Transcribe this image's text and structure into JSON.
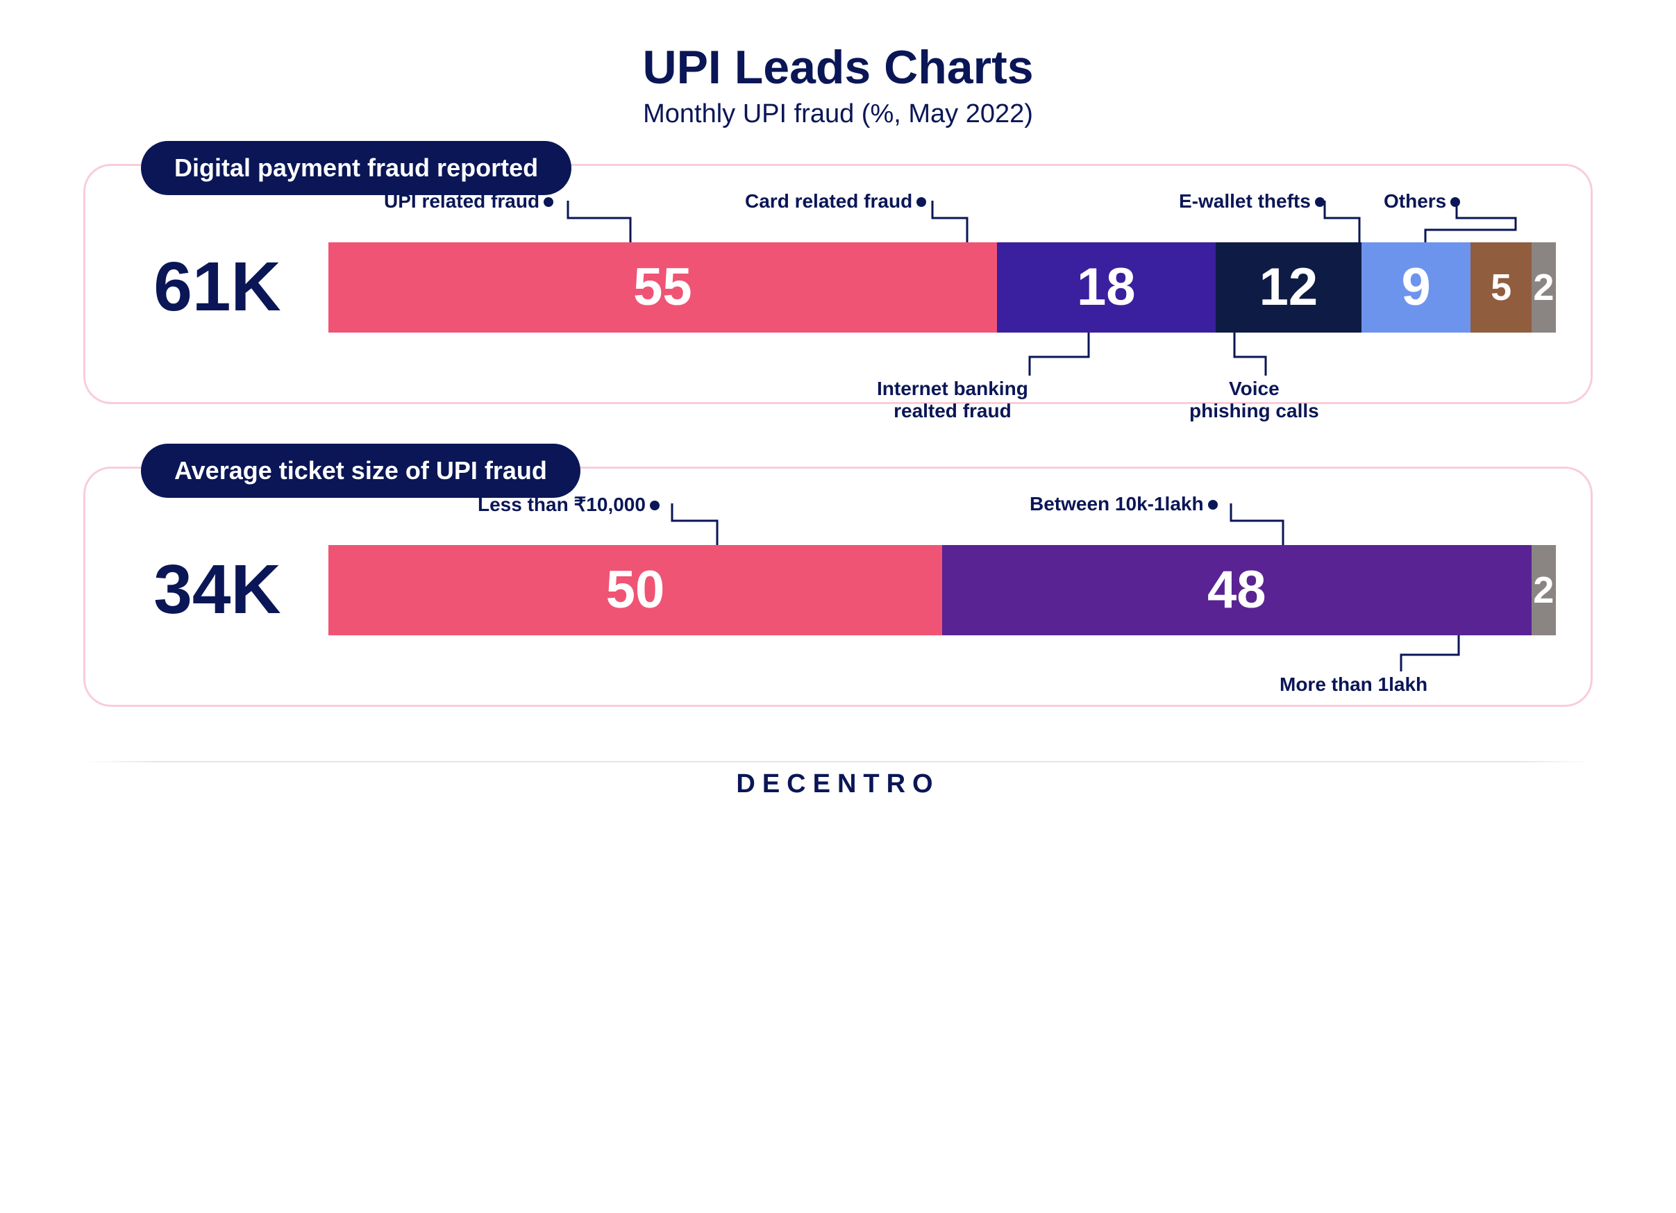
{
  "title": "UPI Leads Charts",
  "subtitle": "Monthly UPI fraud (%, May 2022)",
  "title_color": "#0a1656",
  "title_fontsize": 68,
  "subtitle_fontsize": 38,
  "background_color": "#ffffff",
  "panel_border_color": "#f9cdd8",
  "badge_bg_color": "#0a1656",
  "badge_text_color": "#ffffff",
  "brand": "DECENTRO",
  "chart1": {
    "type": "stacked-bar-horizontal",
    "badge": "Digital payment fraud reported",
    "total": "61K",
    "total_color": "#0a1656",
    "value_text_color": "#ffffff",
    "value_fontsize": 76,
    "label_fontsize": 28,
    "label_color": "#0a1656",
    "segments": [
      {
        "label": "UPI related fraud",
        "value": 55,
        "color": "#f05474",
        "label_pos": "top"
      },
      {
        "label": "Card related fraud",
        "value": 18,
        "color": "#3a1f9e",
        "label_pos": "top"
      },
      {
        "label": "Internet banking realted fraud",
        "value": 12,
        "color": "#0e1b44",
        "label_pos": "bottom"
      },
      {
        "label": "Voice phishing calls",
        "value": 9,
        "color": "#6d94ed",
        "label_pos": "bottom"
      },
      {
        "label": "E-wallet thefts",
        "value": 5,
        "color": "#915d3f",
        "label_pos": "top"
      },
      {
        "label": "Others",
        "value": 2,
        "color": "#8a8582",
        "label_pos": "top"
      }
    ]
  },
  "chart2": {
    "type": "stacked-bar-horizontal",
    "badge": "Average ticket size of UPI fraud",
    "total": "34K",
    "total_color": "#0a1656",
    "value_text_color": "#ffffff",
    "value_fontsize": 76,
    "label_fontsize": 28,
    "label_color": "#0a1656",
    "segments": [
      {
        "label": "Less than ₹10,000",
        "value": 50,
        "color": "#f05474",
        "label_pos": "top"
      },
      {
        "label": "Between 10k-1lakh",
        "value": 48,
        "color": "#5a2394",
        "label_pos": "top"
      },
      {
        "label": "More than 1lakh",
        "value": 2,
        "color": "#8a8582",
        "label_pos": "bottom"
      }
    ]
  }
}
